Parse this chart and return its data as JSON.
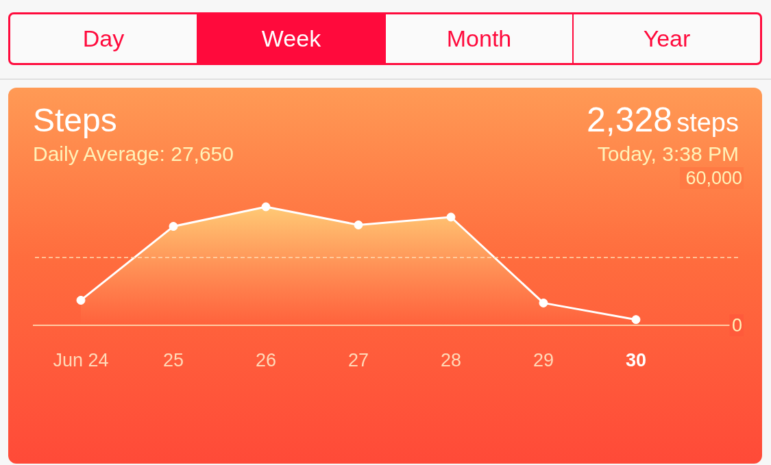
{
  "chart_data": {
    "type": "area",
    "title": "Steps",
    "categories": [
      "Jun 24",
      "25",
      "26",
      "27",
      "28",
      "29",
      "30"
    ],
    "values": [
      10200,
      40300,
      48300,
      40900,
      44100,
      9100,
      2328
    ],
    "color": "#ffffff",
    "ylim": [
      0,
      60000
    ],
    "yticks": [
      {
        "value": 0,
        "label": "0"
      },
      {
        "value": 60000,
        "label": "60,000"
      }
    ],
    "marker": "circle",
    "ref_lines": [
      {
        "axis": "y",
        "value": 27650,
        "label": "Daily Average: 27,650",
        "line_style": "dashed",
        "color": "#ffd9b0"
      }
    ],
    "annotations": [
      "Day",
      "Week",
      "Month",
      "Year",
      "2,328",
      "steps",
      "Today, 3:38 PM"
    ]
  }
}
